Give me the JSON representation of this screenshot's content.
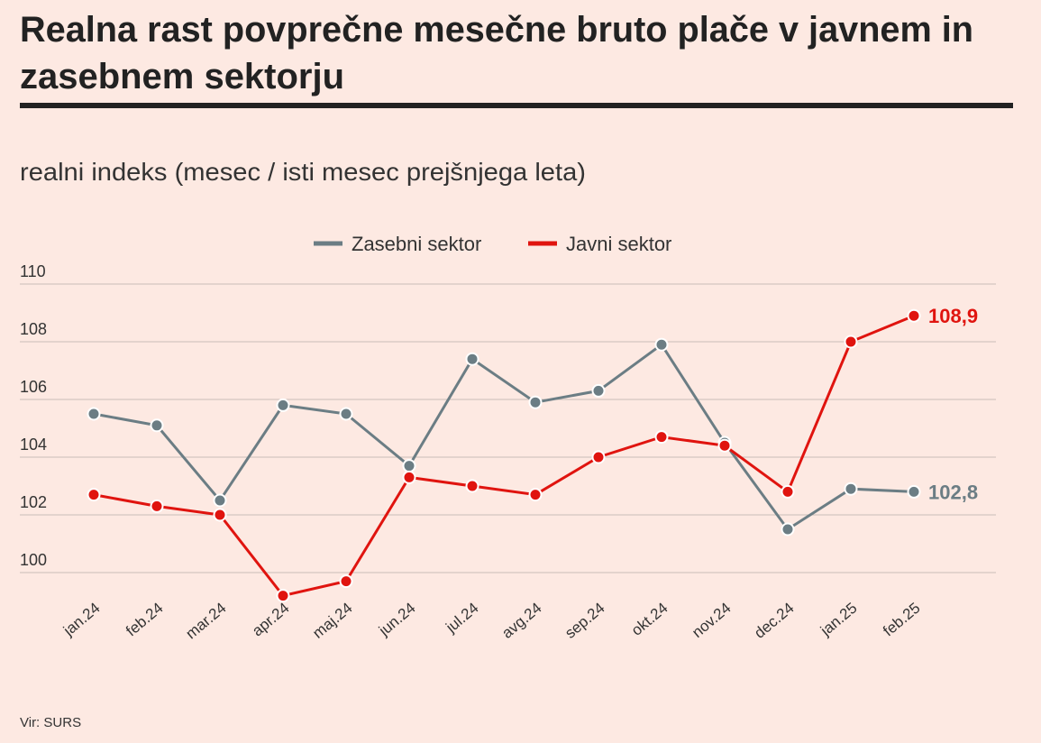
{
  "chart_data": {
    "type": "line",
    "title": [
      "Realna rast povprečne mesečne bruto plače v javnem in",
      "zasebnem sektorju"
    ],
    "subtitle": "realni indeks (mesec / isti mesec prejšnjega leta)",
    "source": "Vir: SURS",
    "categories": [
      "jan.24",
      "feb.24",
      "mar.24",
      "apr.24",
      "maj.24",
      "jun.24",
      "jul.24",
      "avg.24",
      "sep.24",
      "okt.24",
      "nov.24",
      "dec.24",
      "jan.25",
      "feb.25"
    ],
    "series": [
      {
        "name": "Zasebni sektor",
        "color": "#6b7d84",
        "values": [
          105.5,
          105.1,
          102.5,
          105.8,
          105.5,
          103.7,
          107.4,
          105.9,
          106.3,
          107.9,
          104.5,
          101.5,
          102.9,
          102.8
        ],
        "value_labels": [
          null,
          null,
          null,
          null,
          null,
          null,
          null,
          null,
          null,
          null,
          null,
          null,
          null,
          "102,8"
        ]
      },
      {
        "name": "Javni sektor",
        "color": "#e0140f",
        "values": [
          102.7,
          102.3,
          102.0,
          99.2,
          99.7,
          103.3,
          103.0,
          102.7,
          104.0,
          104.7,
          104.4,
          102.8,
          108.0,
          108.9
        ],
        "value_labels": [
          null,
          null,
          null,
          null,
          null,
          null,
          null,
          null,
          null,
          null,
          null,
          null,
          null,
          "108,9"
        ]
      }
    ],
    "ylim": [
      98,
      110
    ],
    "yticks": [
      100,
      102,
      104,
      106,
      108,
      110
    ],
    "grid": true,
    "legend": "top"
  }
}
